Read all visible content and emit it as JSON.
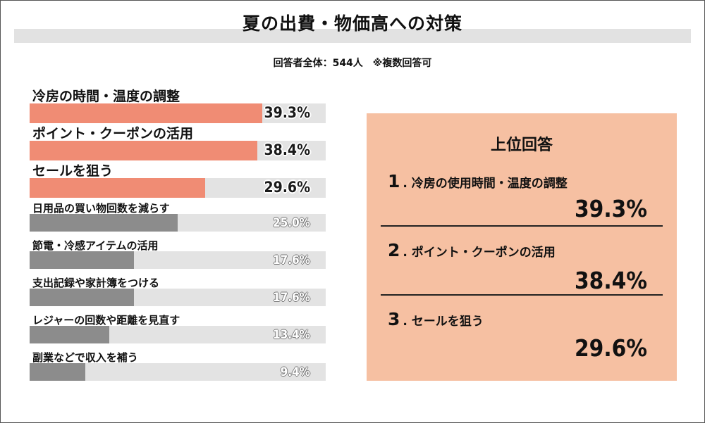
{
  "title": "夏の出費・物価高への対策",
  "subtitle": "回答者全体：544人　※複数回答可",
  "colors": {
    "highlight_bar": "#f08c74",
    "normal_bar": "#8c8c8c",
    "track": "#e3e3e3",
    "panel_bg": "#f6c0a2",
    "title_band": "#e2e2e2"
  },
  "chart_data": {
    "type": "bar",
    "orientation": "horizontal",
    "title": "夏の出費・物価高への対策",
    "subtitle": "回答者全体：544人　※複数回答可",
    "categories": [
      "冷房の時間・温度の調整",
      "ポイント・クーポンの活用",
      "セールを狙う",
      "日用品の買い物回数を減らす",
      "節電・冷感アイテムの活用",
      "支出記録や家計簿をつける",
      "レジャーの回数や距離を見直す",
      "副業などで収入を補う"
    ],
    "values": [
      39.3,
      38.4,
      29.6,
      25.0,
      17.6,
      17.6,
      13.4,
      9.4
    ],
    "value_labels": [
      "39.3%",
      "38.4%",
      "29.6%",
      "25.0%",
      "17.6%",
      "17.6%",
      "13.4%",
      "9.4%"
    ],
    "highlighted_count": 3,
    "unit": "%",
    "xlim": [
      0,
      50
    ],
    "grid": false,
    "legend": "none"
  },
  "top_answers": {
    "title": "上位回答",
    "items": [
      {
        "rank": "1",
        "label": "冷房の使用時間・温度の調整",
        "value": "39.3%"
      },
      {
        "rank": "2",
        "label": "ポイント・クーポンの活用",
        "value": "38.4%"
      },
      {
        "rank": "3",
        "label": "セールを狙う",
        "value": "29.6%"
      }
    ]
  }
}
